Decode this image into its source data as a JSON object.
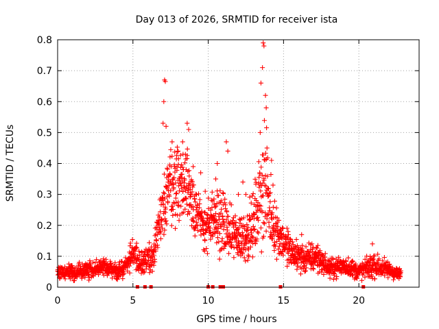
{
  "chart_data": {
    "type": "scatter",
    "title": "Day 013 of 2026, SRMTID for receiver ista",
    "xlabel": "GPS time / hours",
    "ylabel": "SRMTID / TECUs",
    "xlim": [
      0,
      24
    ],
    "ylim": [
      0,
      0.8
    ],
    "xticks": [
      0,
      5,
      10,
      15,
      20
    ],
    "yticks": [
      0,
      0.1,
      0.2,
      0.3,
      0.4,
      0.5,
      0.6,
      0.7,
      0.8
    ],
    "xtick_labels": [
      "0",
      "5",
      "10",
      "15",
      "20"
    ],
    "ytick_labels": [
      "0",
      "0.1",
      "0.2",
      "0.3",
      "0.4",
      "0.5",
      "0.6",
      "0.7",
      "0.8"
    ],
    "grid": true,
    "marker": "+",
    "marker_color": "#ff0000",
    "series": [
      {
        "name": "SRMTID",
        "profile": [
          {
            "x": 0.0,
            "y": 0.05,
            "spread": 0.02
          },
          {
            "x": 1.0,
            "y": 0.05,
            "spread": 0.02
          },
          {
            "x": 2.0,
            "y": 0.055,
            "spread": 0.02
          },
          {
            "x": 3.0,
            "y": 0.065,
            "spread": 0.02
          },
          {
            "x": 4.0,
            "y": 0.05,
            "spread": 0.02
          },
          {
            "x": 4.5,
            "y": 0.07,
            "spread": 0.025
          },
          {
            "x": 5.0,
            "y": 0.11,
            "spread": 0.035
          },
          {
            "x": 5.5,
            "y": 0.08,
            "spread": 0.03
          },
          {
            "x": 6.3,
            "y": 0.1,
            "spread": 0.03
          },
          {
            "x": 6.8,
            "y": 0.2,
            "spread": 0.06
          },
          {
            "x": 7.3,
            "y": 0.33,
            "spread": 0.09
          },
          {
            "x": 8.0,
            "y": 0.34,
            "spread": 0.09
          },
          {
            "x": 8.7,
            "y": 0.33,
            "spread": 0.09
          },
          {
            "x": 9.5,
            "y": 0.2,
            "spread": 0.06
          },
          {
            "x": 10.0,
            "y": 0.2,
            "spread": 0.06
          },
          {
            "x": 10.8,
            "y": 0.22,
            "spread": 0.08
          },
          {
            "x": 11.5,
            "y": 0.17,
            "spread": 0.06
          },
          {
            "x": 12.3,
            "y": 0.16,
            "spread": 0.06
          },
          {
            "x": 13.0,
            "y": 0.2,
            "spread": 0.07
          },
          {
            "x": 13.7,
            "y": 0.35,
            "spread": 0.15
          },
          {
            "x": 14.2,
            "y": 0.22,
            "spread": 0.07
          },
          {
            "x": 14.8,
            "y": 0.16,
            "spread": 0.05
          },
          {
            "x": 15.5,
            "y": 0.11,
            "spread": 0.04
          },
          {
            "x": 16.5,
            "y": 0.09,
            "spread": 0.035
          },
          {
            "x": 17.2,
            "y": 0.1,
            "spread": 0.035
          },
          {
            "x": 18.0,
            "y": 0.06,
            "spread": 0.02
          },
          {
            "x": 19.0,
            "y": 0.07,
            "spread": 0.025
          },
          {
            "x": 20.0,
            "y": 0.05,
            "spread": 0.02
          },
          {
            "x": 21.0,
            "y": 0.07,
            "spread": 0.03
          },
          {
            "x": 22.0,
            "y": 0.055,
            "spread": 0.02
          },
          {
            "x": 22.8,
            "y": 0.04,
            "spread": 0.015
          }
        ],
        "outliers": [
          [
            7.1,
            0.67
          ],
          [
            7.15,
            0.665
          ],
          [
            7.05,
            0.6
          ],
          [
            7.0,
            0.53
          ],
          [
            7.2,
            0.52
          ],
          [
            8.3,
            0.47
          ],
          [
            8.6,
            0.53
          ],
          [
            8.7,
            0.51
          ],
          [
            8.0,
            0.44
          ],
          [
            7.6,
            0.47
          ],
          [
            9.0,
            0.39
          ],
          [
            9.5,
            0.37
          ],
          [
            9.8,
            0.31
          ],
          [
            10.6,
            0.4
          ],
          [
            10.5,
            0.35
          ],
          [
            11.2,
            0.47
          ],
          [
            11.3,
            0.44
          ],
          [
            12.0,
            0.3
          ],
          [
            12.3,
            0.34
          ],
          [
            12.5,
            0.3
          ],
          [
            13.5,
            0.66
          ],
          [
            13.6,
            0.71
          ],
          [
            13.65,
            0.79
          ],
          [
            13.7,
            0.78
          ],
          [
            13.8,
            0.62
          ],
          [
            13.85,
            0.58
          ],
          [
            13.9,
            0.45
          ],
          [
            13.45,
            0.5
          ],
          [
            14.2,
            0.41
          ],
          [
            14.3,
            0.33
          ],
          [
            15.3,
            0.18
          ],
          [
            16.2,
            0.17
          ],
          [
            20.9,
            0.14
          ]
        ],
        "data_gaps_x": [
          5.3,
          5.8,
          6.2,
          10.0,
          10.3,
          10.8,
          11.0,
          14.8,
          20.3
        ]
      }
    ]
  }
}
